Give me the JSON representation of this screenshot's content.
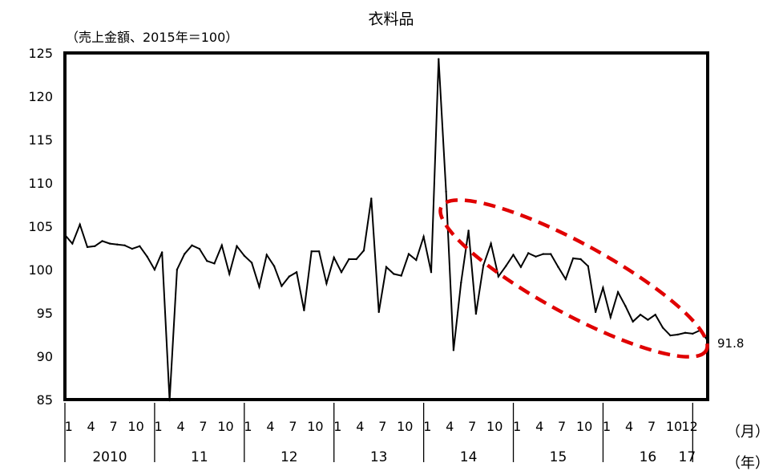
{
  "chart_data": {
    "type": "line",
    "title": "衣料品",
    "subtitle": "（売上金額、2015年＝100）",
    "y_ticks": [
      "85",
      "90",
      "95",
      "100",
      "105",
      "110",
      "115",
      "120",
      "125"
    ],
    "ylim": [
      85,
      125
    ],
    "grid": false,
    "month_labels": [
      "1",
      "4",
      "7",
      "10"
    ],
    "last_month_label": "12",
    "year_labels": [
      "2010",
      "11",
      "12",
      "13",
      "14",
      "15",
      "16",
      "17"
    ],
    "month_unit": "（月）",
    "year_unit": "（年）",
    "end_value_label": "91.8",
    "annotation": "red dashed ellipse highlighting the downward trend from 2014 to 2016",
    "series": [
      {
        "start": "2010-01",
        "end": "2017-01",
        "color": "#000000",
        "values": [
          104.0,
          103.0,
          105.2,
          102.6,
          102.7,
          103.3,
          103.0,
          102.9,
          102.8,
          102.4,
          102.7,
          101.5,
          100.0,
          102.0,
          84.9,
          100.0,
          101.8,
          102.8,
          102.4,
          101.0,
          100.7,
          102.8,
          99.5,
          102.7,
          101.6,
          100.8,
          98.0,
          101.7,
          100.4,
          98.1,
          99.2,
          99.7,
          95.3,
          102.1,
          102.1,
          98.4,
          101.4,
          99.7,
          101.2,
          101.2,
          102.2,
          108.2,
          95.1,
          100.3,
          99.5,
          99.3,
          101.8,
          101.1,
          103.8,
          99.7,
          124.3,
          109.0,
          90.7,
          98.5,
          104.5,
          94.9,
          100.5,
          103.0,
          99.2,
          100.4,
          101.7,
          100.3,
          101.9,
          101.5,
          101.8,
          101.8,
          100.3,
          98.9,
          101.3,
          101.2,
          100.4,
          95.1,
          97.9,
          94.5,
          97.4,
          95.8,
          94.0,
          94.8,
          94.2,
          94.8,
          93.3,
          92.4,
          92.5,
          92.7,
          92.6,
          93.0,
          91.8
        ]
      }
    ]
  }
}
